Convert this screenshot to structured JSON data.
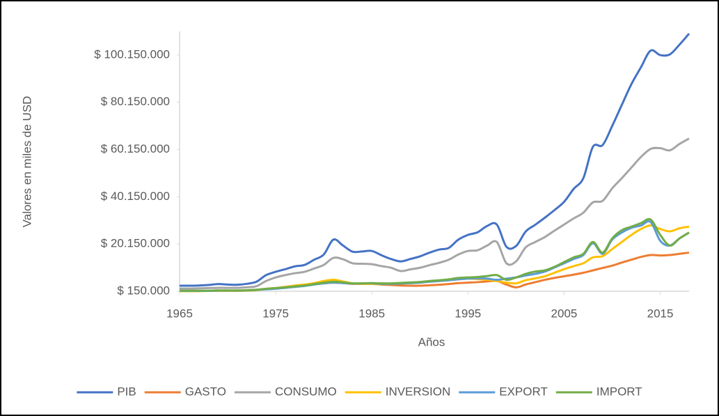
{
  "chart_data": {
    "type": "line",
    "xlabel": "Años",
    "ylabel": "Valores en miles de USD",
    "x": [
      1965,
      1966,
      1967,
      1968,
      1969,
      1970,
      1971,
      1972,
      1973,
      1974,
      1975,
      1976,
      1977,
      1978,
      1979,
      1980,
      1981,
      1982,
      1983,
      1984,
      1985,
      1986,
      1987,
      1988,
      1989,
      1990,
      1991,
      1992,
      1993,
      1994,
      1995,
      1996,
      1997,
      1998,
      1999,
      2000,
      2001,
      2002,
      2003,
      2004,
      2005,
      2006,
      2007,
      2008,
      2009,
      2010,
      2011,
      2012,
      2013,
      2014,
      2015,
      2016,
      2017,
      2018
    ],
    "xlim": [
      1965,
      2018
    ],
    "xticks": [
      1965,
      1975,
      1985,
      1995,
      2005,
      2015
    ],
    "ylim": [
      150000,
      110150000
    ],
    "yticks": [
      {
        "value": 150000,
        "label": "$ 150.000"
      },
      {
        "value": 20150000,
        "label": "$ 20.150.000"
      },
      {
        "value": 40150000,
        "label": "$ 40.150.000"
      },
      {
        "value": 60150000,
        "label": "$ 60.150.000"
      },
      {
        "value": 80150000,
        "label": "$ 80.150.000"
      },
      {
        "value": 100150000,
        "label": "$ 100.150.000"
      }
    ],
    "grid": false,
    "legend": "bottom",
    "series": [
      {
        "name": "PIB",
        "color": "#4472c4",
        "values": [
          2500000,
          2500000,
          2600000,
          2800000,
          3200000,
          3000000,
          2900000,
          3300000,
          4200000,
          7000000,
          8400000,
          9500000,
          10700000,
          11300000,
          13500000,
          15700000,
          22000000,
          19500000,
          16900000,
          17000000,
          17200000,
          15400000,
          13800000,
          12800000,
          13800000,
          14900000,
          16500000,
          17800000,
          18500000,
          22000000,
          24000000,
          25100000,
          27800000,
          28400000,
          19000000,
          19300000,
          25400000,
          28300000,
          31300000,
          34500000,
          38000000,
          43500000,
          48000000,
          61300000,
          62000000,
          70100000,
          79000000,
          87800000,
          95000000,
          102000000,
          100100000,
          100400000,
          104500000,
          109200000
        ]
      },
      {
        "name": "GASTO",
        "color": "#ed7d31",
        "values": [
          300000,
          300000,
          300000,
          300000,
          400000,
          400000,
          400000,
          500000,
          700000,
          1200000,
          1500000,
          2000000,
          2400000,
          2800000,
          3200000,
          3500000,
          3800000,
          3600000,
          3300000,
          3300000,
          3300000,
          3000000,
          2800000,
          2600000,
          2500000,
          2500000,
          2700000,
          2900000,
          3200000,
          3600000,
          3800000,
          4000000,
          4300000,
          4500000,
          3000000,
          1800000,
          3000000,
          4000000,
          5000000,
          5800000,
          6500000,
          7200000,
          8000000,
          9000000,
          10000000,
          11000000,
          12300000,
          13500000,
          14700000,
          15500000,
          15300000,
          15500000,
          16000000,
          16500000
        ]
      },
      {
        "name": "CONSUMO",
        "color": "#a5a5a5",
        "values": [
          1300000,
          1300000,
          1400000,
          1500000,
          1600000,
          1600000,
          1600000,
          1800000,
          2300000,
          4500000,
          6000000,
          7000000,
          7800000,
          8400000,
          9800000,
          11300000,
          14300000,
          13700000,
          12000000,
          11800000,
          11600000,
          10800000,
          10100000,
          8700000,
          9400000,
          10100000,
          11200000,
          12200000,
          13500000,
          15700000,
          17200000,
          17500000,
          19500000,
          21000000,
          12000000,
          12800000,
          18700000,
          21000000,
          23100000,
          25800000,
          28400000,
          31000000,
          33400000,
          37800000,
          38400000,
          43700000,
          48000000,
          52500000,
          57000000,
          60400000,
          60700000,
          59800000,
          62500000,
          64800000
        ]
      },
      {
        "name": "INVERSION",
        "color": "#ffc000",
        "values": [
          200000,
          200000,
          200000,
          300000,
          300000,
          300000,
          300000,
          400000,
          600000,
          1200000,
          1500000,
          2000000,
          2600000,
          3000000,
          3600000,
          4500000,
          5000000,
          4300000,
          3500000,
          3300000,
          3300000,
          3200000,
          3300000,
          3400000,
          3600000,
          3800000,
          4200000,
          4500000,
          4800000,
          5200000,
          5500000,
          5300000,
          5000000,
          4500000,
          3800000,
          3500000,
          4800000,
          5600000,
          6500000,
          8000000,
          9500000,
          10800000,
          12000000,
          14500000,
          15000000,
          18000000,
          21000000,
          24000000,
          26500000,
          28000000,
          26500000,
          25500000,
          26800000,
          27500000
        ]
      },
      {
        "name": "EXPORT",
        "color": "#5b9bd5",
        "values": [
          300000,
          300000,
          300000,
          300000,
          400000,
          400000,
          400000,
          500000,
          700000,
          1000000,
          1200000,
          1600000,
          2000000,
          2400000,
          3000000,
          3500000,
          3800000,
          3600000,
          3400000,
          3500000,
          3500000,
          3300000,
          3300000,
          3400000,
          3600000,
          3800000,
          4200000,
          4500000,
          4800000,
          5200000,
          5500000,
          5600000,
          5500000,
          5000000,
          5500000,
          6000000,
          6800000,
          7500000,
          8500000,
          10200000,
          12000000,
          13800000,
          15500000,
          20500000,
          16000000,
          22000000,
          25000000,
          27000000,
          28000000,
          29500000,
          21500000,
          19500000,
          22500000,
          25000000
        ]
      },
      {
        "name": "IMPORT",
        "color": "#70ad47",
        "values": [
          400000,
          400000,
          400000,
          400000,
          500000,
          500000,
          500000,
          600000,
          800000,
          1200000,
          1500000,
          1800000,
          2200000,
          2600000,
          3200000,
          3800000,
          4200000,
          3900000,
          3500000,
          3500000,
          3600000,
          3500000,
          3500000,
          3700000,
          3900000,
          4100000,
          4500000,
          4800000,
          5200000,
          5800000,
          6000000,
          6200000,
          6600000,
          7000000,
          5000000,
          6000000,
          7500000,
          8500000,
          9000000,
          10500000,
          12500000,
          14500000,
          16000000,
          21000000,
          16500000,
          22500000,
          26000000,
          27500000,
          29000000,
          30500000,
          24000000,
          19500000,
          22500000,
          25000000
        ]
      }
    ]
  }
}
